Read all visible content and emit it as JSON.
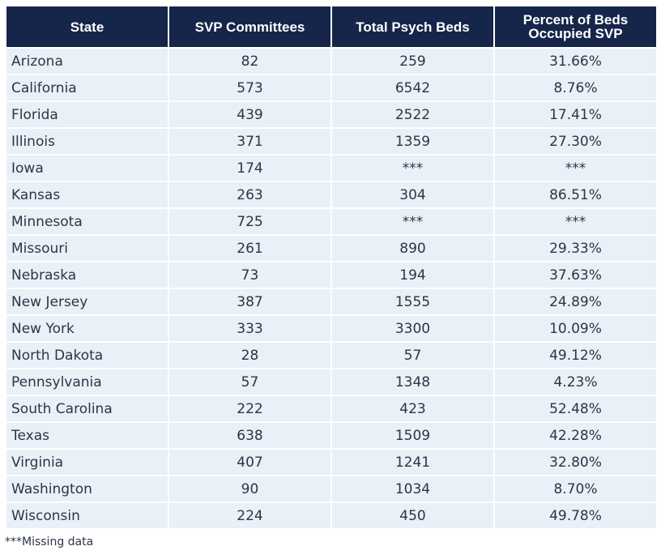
{
  "table": {
    "headers": [
      "State",
      "SVP Committees",
      "Total Psych Beds",
      "Percent of Beds Occupied SVP"
    ],
    "rows": [
      [
        "Arizona",
        "82",
        "259",
        "31.66%"
      ],
      [
        "California",
        "573",
        "6542",
        "8.76%"
      ],
      [
        "Florida",
        "439",
        "2522",
        "17.41%"
      ],
      [
        "Illinois",
        "371",
        "1359",
        "27.30%"
      ],
      [
        "Iowa",
        "174",
        "***",
        "***"
      ],
      [
        "Kansas",
        "263",
        "304",
        "86.51%"
      ],
      [
        "Minnesota",
        "725",
        "***",
        "***"
      ],
      [
        "Missouri",
        "261",
        "890",
        "29.33%"
      ],
      [
        "Nebraska",
        "73",
        "194",
        "37.63%"
      ],
      [
        "New Jersey",
        "387",
        "1555",
        "24.89%"
      ],
      [
        "New York",
        "333",
        "3300",
        "10.09%"
      ],
      [
        "North Dakota",
        "28",
        "57",
        "49.12%"
      ],
      [
        "Pennsylvania",
        "57",
        "1348",
        "4.23%"
      ],
      [
        "South Carolina",
        "222",
        "423",
        "52.48%"
      ],
      [
        "Texas",
        "638",
        "1509",
        "42.28%"
      ],
      [
        "Virginia",
        "407",
        "1241",
        "32.80%"
      ],
      [
        "Washington",
        "90",
        "1034",
        "8.70%"
      ],
      [
        "Wisconsin",
        "224",
        "450",
        "49.78%"
      ]
    ]
  },
  "footnote": "***Missing data",
  "colors": {
    "header_bg": "#16264a",
    "header_text": "#ffffff",
    "row_bg": "#e9f0f7"
  }
}
